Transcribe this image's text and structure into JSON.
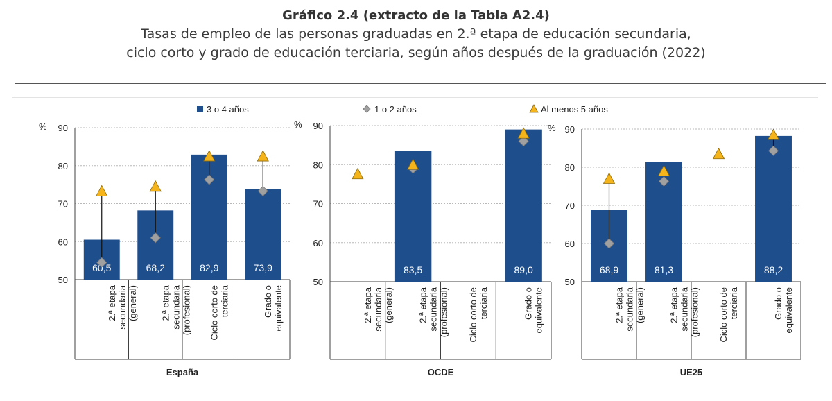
{
  "header": {
    "title": "Gráfico 2.4 (extracto de la Tabla A2.4)",
    "subtitle_line1": "Tasas de empleo de las personas graduadas en 2.ª etapa de educación secundaria,",
    "subtitle_line2": "ciclo corto y grado de educación terciaria, según años después de la graduación (2022)"
  },
  "colors": {
    "bar": "#1f4e8c",
    "diamond": "#a0a0a0",
    "triangle": "#f4b41a",
    "triangle_stroke": "#8a6a10",
    "grid": "#b8b8b8",
    "axis": "#404040"
  },
  "chart_data": {
    "type": "bar",
    "y_unit": "%",
    "ylim": [
      50,
      90
    ],
    "yticks": [
      "50",
      "60",
      "70",
      "80",
      "90"
    ],
    "legend": {
      "bar": "3 o 4 años",
      "diamond": "1 o 2 años",
      "triangle": "Al menos 5 años"
    },
    "categories": [
      [
        "2.ª etapa",
        "secundaria",
        "(general)"
      ],
      [
        "2.ª etapa",
        "secundaria",
        "(profesional)"
      ],
      [
        "Ciclo corto de",
        "terciaria"
      ],
      [
        "Grado o",
        "equivalente"
      ]
    ],
    "panels": [
      {
        "name": "España",
        "bars": [
          60.5,
          68.2,
          82.9,
          73.9
        ],
        "bar_labels": [
          "60,5",
          "68,2",
          "82,9",
          "73,9"
        ],
        "diamonds": [
          54.5,
          61,
          76.3,
          73.3
        ],
        "triangles": [
          73.3,
          74.5,
          82.5,
          82.5
        ]
      },
      {
        "name": "OCDE",
        "bars": [
          null,
          83.5,
          null,
          89.0
        ],
        "bar_labels": [
          null,
          "83,5",
          null,
          "89,0"
        ],
        "diamonds": [
          null,
          79,
          null,
          86
        ],
        "triangles": [
          77.6,
          80,
          null,
          88
        ]
      },
      {
        "name": "UE25",
        "bars": [
          68.9,
          81.3,
          null,
          88.2
        ],
        "bar_labels": [
          "68,9",
          "81,3",
          null,
          "88,2"
        ],
        "diamonds": [
          60,
          76.3,
          null,
          84.3
        ],
        "triangles": [
          77,
          79,
          83.5,
          88.5
        ]
      }
    ]
  }
}
